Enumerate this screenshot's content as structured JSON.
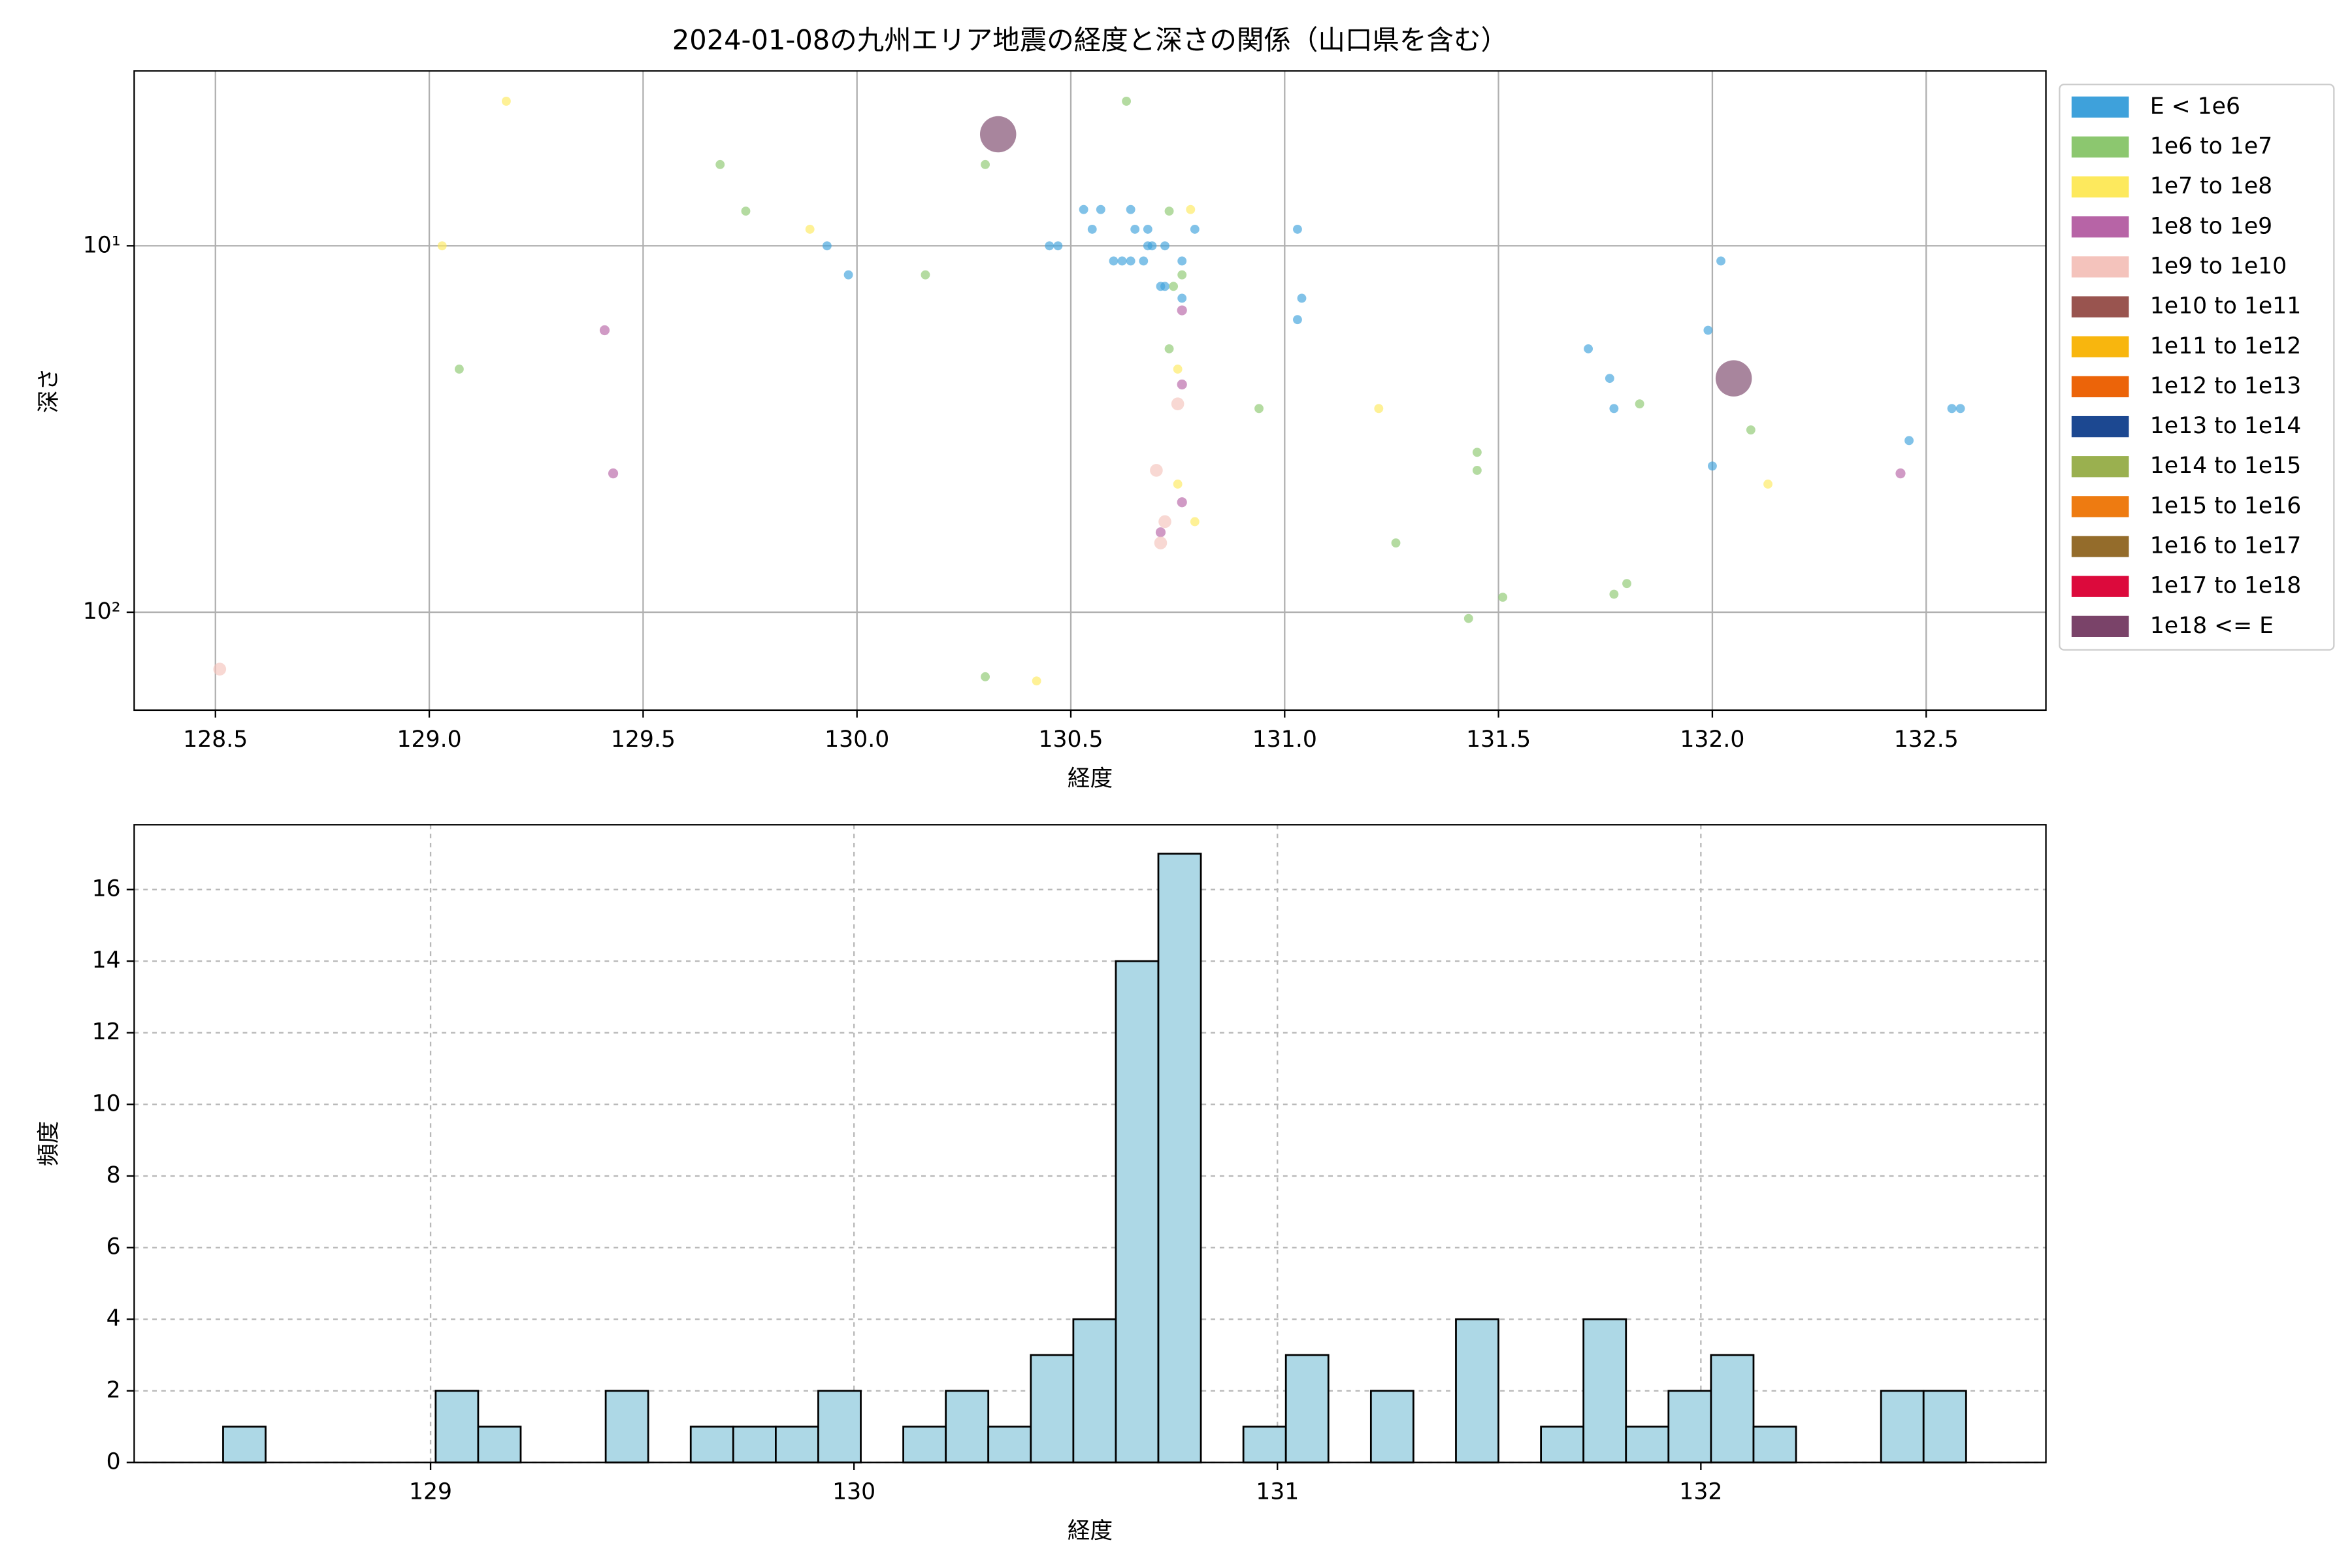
{
  "chart_data": [
    {
      "type": "scatter",
      "title": "2024-01-08の九州エリア地震の経度と深さの関係（山口県を含む）",
      "xlabel": "経度",
      "ylabel": "深さ",
      "xlim": [
        128.31,
        132.78
      ],
      "xticks": [
        128.5,
        {
          "value": 129,
          "label": "129.0"
        },
        129.5,
        {
          "value": 130,
          "label": "130.0"
        },
        130.5,
        {
          "value": 131,
          "label": "131.0"
        },
        131.5,
        {
          "value": 132,
          "label": "132.0"
        },
        132.5
      ],
      "ylim": [
        185,
        3.33
      ],
      "yscale": "log",
      "y_inverted": true,
      "yticks": [
        {
          "value": 10,
          "label": "10¹"
        },
        {
          "value": 100,
          "label": "10²"
        }
      ],
      "grid": true,
      "legend": "outside upper right",
      "alpha": 0.65,
      "series": [
        {
          "name": "E < 1e6",
          "color": "#3ea1db",
          "size": 10,
          "x": [
            130.53,
            130.55,
            130.57,
            130.64,
            130.65,
            130.68,
            130.79,
            130.6,
            130.62,
            130.64,
            130.67,
            130.68,
            130.69,
            130.72,
            130.71,
            130.72,
            130.76,
            130.76,
            129.93,
            129.98,
            130.45,
            130.47,
            131.03,
            131.04,
            131.03,
            132.02,
            131.99,
            131.71,
            131.76,
            131.77,
            132.0,
            132.46,
            132.56,
            132.58
          ],
          "values": [
            7.96,
            9.01,
            7.96,
            7.96,
            9.01,
            9.01,
            9.01,
            11.0,
            11.0,
            11.0,
            11.0,
            10,
            10,
            10,
            12.9,
            12.9,
            11.0,
            13.9,
            10,
            12.0,
            10,
            10,
            9.01,
            13.9,
            15.9,
            11.0,
            17.0,
            19.1,
            23.0,
            27.8,
            39.9,
            34.0,
            27.8,
            27.8
          ]
        },
        {
          "name": "1e6 to 1e7",
          "color": "#8cc76f",
          "size": 10,
          "x": [
            130.63,
            129.68,
            130.3,
            129.74,
            130.73,
            130.16,
            130.76,
            130.74,
            129.07,
            130.73,
            130.94,
            131.83,
            132.09,
            131.45,
            131.45,
            131.26,
            131.8,
            131.77,
            131.51,
            131.43,
            130.3
          ],
          "values": [
            4.03,
            6.0,
            6.0,
            8.04,
            8.04,
            12.0,
            12.0,
            12.9,
            21.7,
            19.1,
            27.8,
            27.0,
            31.8,
            36.6,
            41.0,
            64.7,
            83.5,
            89.3,
            91.0,
            104,
            150
          ]
        },
        {
          "name": "1e7 to 1e8",
          "color": "#fde95d",
          "size": 10,
          "x": [
            129.18,
            129.03,
            129.89,
            130.78,
            130.75,
            131.22,
            130.75,
            130.79,
            132.13,
            130.42
          ],
          "values": [
            4.03,
            10,
            9.01,
            7.96,
            21.7,
            27.8,
            44.7,
            56.6,
            44.7,
            154
          ]
        },
        {
          "name": "1e8 to 1e9",
          "color": "#b764a6",
          "size": 12,
          "x": [
            129.41,
            130.76,
            130.76,
            129.43,
            130.76,
            130.71,
            132.44
          ],
          "values": [
            17.0,
            15.0,
            23.9,
            41.8,
            50.1,
            60.5,
            41.8
          ]
        },
        {
          "name": "1e9 to 1e10",
          "color": "#f4c3bc",
          "size": 20,
          "x": [
            130.75,
            130.7,
            130.72,
            130.71,
            128.51
          ],
          "values": [
            27.0,
            41.0,
            56.6,
            64.7,
            143
          ]
        },
        {
          "name": "1e10 to 1e11",
          "color": "#99544f",
          "size": 30,
          "x": [],
          "values": []
        },
        {
          "name": "1e11 to 1e12",
          "color": "#f8b60e",
          "size": 40,
          "x": [],
          "values": []
        },
        {
          "name": "1e12 to 1e13",
          "color": "#ec6409",
          "size": 50,
          "x": [],
          "values": []
        },
        {
          "name": "1e13 to 1e14",
          "color": "#1c4891",
          "size": 60,
          "x": [],
          "values": []
        },
        {
          "name": "1e14 to 1e15",
          "color": "#9ab04f",
          "size": 70,
          "x": [],
          "values": []
        },
        {
          "name": "1e15 to 1e16",
          "color": "#ee7b11",
          "size": 80,
          "x": [],
          "values": []
        },
        {
          "name": "1e16 to 1e17",
          "color": "#946c2b",
          "size": 90,
          "x": [],
          "values": []
        },
        {
          "name": "1e17 to 1e18",
          "color": "#dc0a3c",
          "size": 100,
          "x": [],
          "values": []
        },
        {
          "name": "1e18 <= E",
          "color": "#7a4369",
          "size": 160,
          "x": [
            130.33,
            132.05
          ],
          "values": [
            4.96,
            23.0
          ]
        }
      ]
    },
    {
      "type": "histogram",
      "xlabel": "経度",
      "ylabel": "頻度",
      "xlim": [
        128.3,
        132.815
      ],
      "xticks": [
        129,
        130,
        131,
        132
      ],
      "ylim": [
        0,
        17.81
      ],
      "yticks": [
        0,
        2,
        4,
        6,
        8,
        10,
        12,
        14,
        16
      ],
      "grid": true,
      "grid_style": "dashed",
      "color": "#add8e6",
      "edgecolor": "#000000",
      "bins": [
        128.51,
        128.6104,
        128.7108,
        128.8112,
        128.9116,
        129.012,
        129.1124,
        129.2128,
        129.3132,
        129.4136,
        129.514,
        129.6144,
        129.7148,
        129.8152,
        129.9156,
        130.016,
        130.1164,
        130.2168,
        130.3172,
        130.4176,
        130.518,
        130.6184,
        130.7188,
        130.8192,
        130.9196,
        131.02,
        131.1204,
        131.2208,
        131.3212,
        131.4216,
        131.522,
        131.6224,
        131.7228,
        131.8232,
        131.9236,
        132.024,
        132.1244,
        132.2248,
        132.3252,
        132.4256,
        132.526,
        132.6264
      ],
      "values": [
        1,
        0,
        0,
        0,
        0,
        2,
        1,
        0,
        0,
        2,
        0,
        1,
        1,
        1,
        2,
        0,
        1,
        2,
        1,
        3,
        4,
        14,
        17,
        0,
        1,
        3,
        0,
        2,
        0,
        4,
        0,
        1,
        4,
        1,
        2,
        3,
        1,
        0,
        0,
        2,
        2
      ]
    }
  ]
}
